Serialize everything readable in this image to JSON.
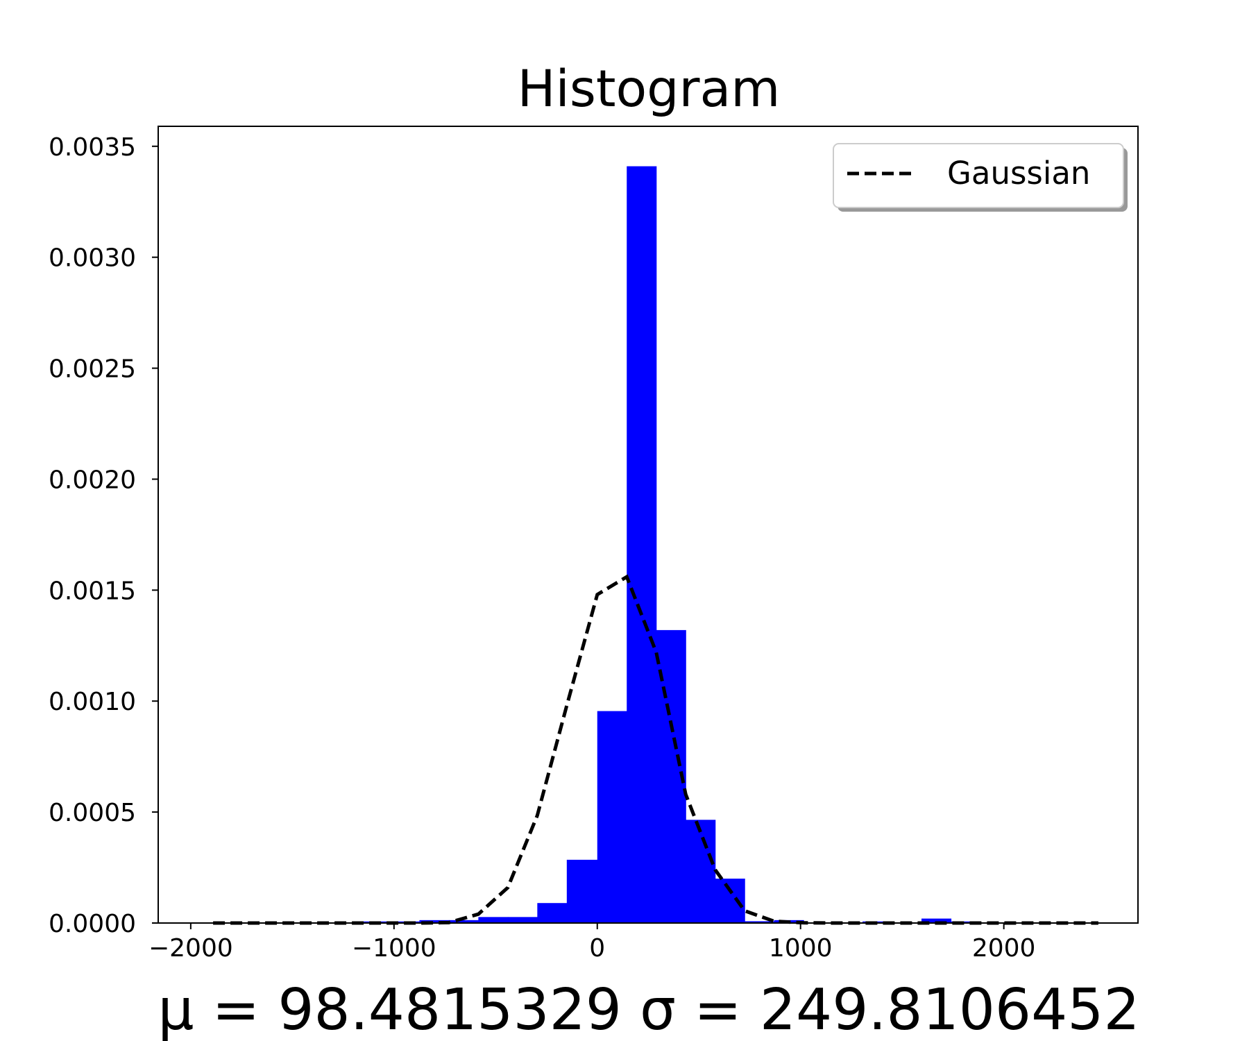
{
  "chart_data": {
    "type": "bar",
    "title": "Histogram",
    "xlabel": "μ = 98.4815329  σ = 249.8106452",
    "ylabel": "",
    "xlim": [
      -2160,
      2660
    ],
    "ylim": [
      0,
      0.00359
    ],
    "x_ticks": [
      {
        "value": -2000,
        "label": "−2000"
      },
      {
        "value": -1000,
        "label": "−1000"
      },
      {
        "value": 0,
        "label": "0"
      },
      {
        "value": 1000,
        "label": "1000"
      },
      {
        "value": 2000,
        "label": "2000"
      }
    ],
    "y_ticks": [
      {
        "value": 0.0,
        "label": "0.0000"
      },
      {
        "value": 0.0005,
        "label": "0.0005"
      },
      {
        "value": 0.001,
        "label": "0.0010"
      },
      {
        "value": 0.0015,
        "label": "0.0015"
      },
      {
        "value": 0.002,
        "label": "0.0020"
      },
      {
        "value": 0.0025,
        "label": "0.0025"
      },
      {
        "value": 0.003,
        "label": "0.0030"
      },
      {
        "value": 0.0035,
        "label": "0.0035"
      }
    ],
    "bin_edges": [
      -1890,
      -1745,
      -1600,
      -1455,
      -1310,
      -1165,
      -1020,
      -875,
      -730,
      -585,
      -440,
      -295,
      -150,
      0,
      145,
      290,
      435,
      580,
      725,
      870,
      1015,
      1160,
      1305,
      1450,
      1595,
      1740,
      1885,
      2030,
      2175,
      2320,
      2465
    ],
    "densities": [
      3e-06,
      0.0,
      3e-06,
      0.0,
      3e-06,
      7e-06,
      7e-06,
      1.3e-05,
      1.3e-05,
      2.7e-05,
      2.7e-05,
      9e-05,
      0.000285,
      0.000955,
      0.00341,
      0.00132,
      0.000465,
      0.0002,
      8e-06,
      1.3e-05,
      3e-06,
      3e-06,
      7e-06,
      3e-06,
      2e-05,
      7e-06,
      3e-06,
      3e-06,
      0.0,
      3e-06
    ],
    "bar_color": "#0000ff",
    "series": [
      {
        "name": "Gaussian",
        "style": "dashed",
        "color": "#000000",
        "x": [
          -1890,
          -1745,
          -1600,
          -1455,
          -1310,
          -1165,
          -1020,
          -875,
          -730,
          -585,
          -440,
          -295,
          -150,
          0,
          145,
          290,
          435,
          580,
          725,
          870,
          1015,
          1160,
          1305,
          1450,
          1595,
          1740,
          1885,
          2030,
          2175,
          2320,
          2465
        ],
        "y": [
          0.0,
          0.0,
          0.0,
          0.0,
          0.0,
          0.0,
          0.0,
          0.0,
          2e-06,
          4e-05,
          0.00016,
          0.000485,
          0.00098,
          0.00148,
          0.00156,
          0.00122,
          0.00058,
          0.00024,
          5.5e-05,
          8e-06,
          1e-06,
          0.0,
          0.0,
          0.0,
          0.0,
          0.0,
          0.0,
          0.0,
          0.0,
          0.0,
          0.0
        ]
      }
    ],
    "legend": {
      "position": "upper right",
      "labels": [
        "Gaussian"
      ]
    },
    "grid": false
  }
}
